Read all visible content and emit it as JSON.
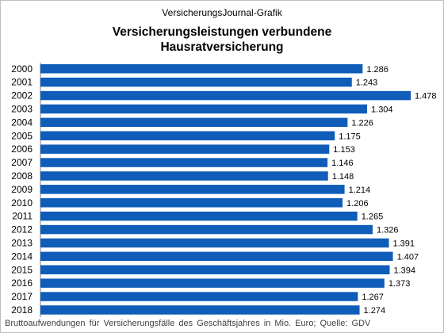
{
  "header": {
    "source_label": "VersicherungsJournal-Grafik",
    "title_line1": "Versicherungsleistungen  verbundene",
    "title_line2": "Hausratversicherung"
  },
  "footer": {
    "note": "Bruttoaufwendungen  für Versicherungsfälle  des Geschäftsjahres  in Mio. Euro; Quelle:  GDV"
  },
  "chart_data": {
    "type": "bar",
    "orientation": "horizontal",
    "categories": [
      "2000",
      "2001",
      "2002",
      "2003",
      "2004",
      "2005",
      "2006",
      "2007",
      "2008",
      "2009",
      "2010",
      "2011",
      "2012",
      "2013",
      "2014",
      "2015",
      "2016",
      "2017",
      "2018"
    ],
    "values": [
      1286,
      1243,
      1478,
      1304,
      1226,
      1175,
      1153,
      1146,
      1148,
      1214,
      1206,
      1265,
      1326,
      1391,
      1407,
      1394,
      1373,
      1267,
      1274
    ],
    "value_labels": [
      "1.286",
      "1.243",
      "1.478",
      "1.304",
      "1.226",
      "1.175",
      "1.153",
      "1.146",
      "1.148",
      "1.214",
      "1.206",
      "1.265",
      "1.326",
      "1.391",
      "1.407",
      "1.394",
      "1.373",
      "1.267",
      "1.274"
    ],
    "bar_color": "#0f5db8",
    "xlim": [
      0,
      1478
    ],
    "grid": false,
    "legend": "none"
  }
}
